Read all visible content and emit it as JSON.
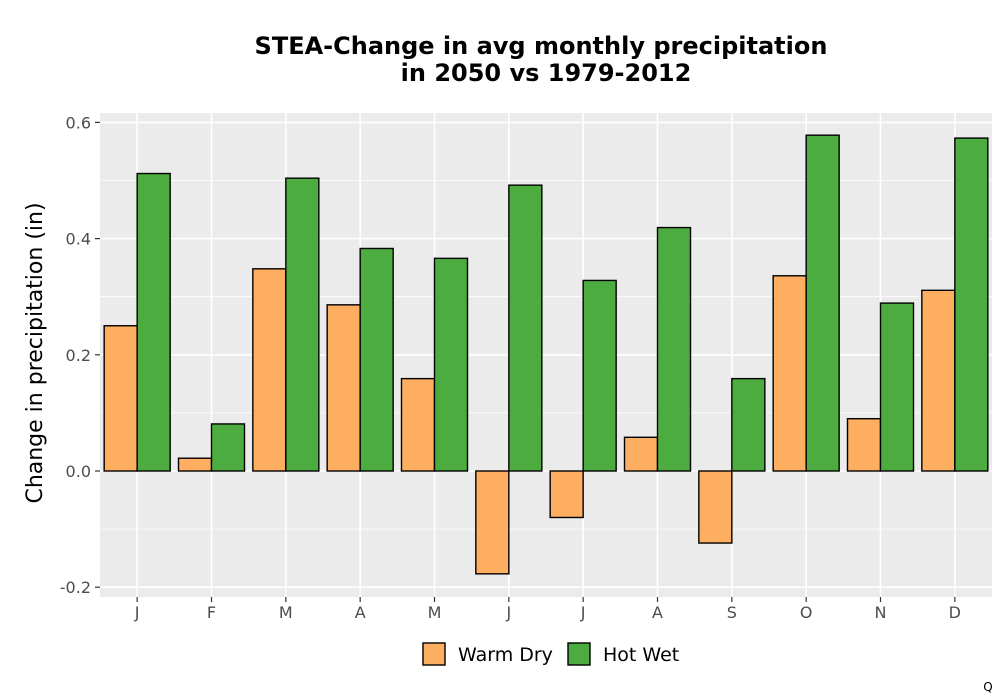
{
  "chart_data": {
    "type": "bar",
    "title_lines": [
      "STEA-Change in avg monthly precipitation",
      "in 2050 vs 1979-2012"
    ],
    "xlabel": "",
    "ylabel": "Change in precipitation (in)",
    "categories": [
      "J",
      "F",
      "M",
      "A",
      "M",
      "J",
      "J",
      "A",
      "S",
      "O",
      "N",
      "D"
    ],
    "series": [
      {
        "name": "Warm Dry",
        "color": "#fdae61",
        "values": [
          0.25,
          0.022,
          0.348,
          0.286,
          0.159,
          -0.177,
          -0.08,
          0.058,
          -0.124,
          0.336,
          0.09,
          0.311
        ]
      },
      {
        "name": "Hot Wet",
        "color": "#4dac3f",
        "values": [
          0.512,
          0.081,
          0.504,
          0.383,
          0.366,
          0.492,
          0.328,
          0.419,
          0.159,
          0.578,
          0.289,
          0.573
        ]
      }
    ],
    "ylim": [
      -0.2,
      0.6
    ],
    "yticks": [
      -0.2,
      0.0,
      0.2,
      0.4,
      0.6
    ],
    "ytick_labels": [
      "-0.2",
      "0.0",
      "0.2",
      "0.4",
      "0.6"
    ],
    "grid": true,
    "legend_position": "bottom",
    "panel_color": "#ebebeb",
    "corner_mark": "Q"
  }
}
